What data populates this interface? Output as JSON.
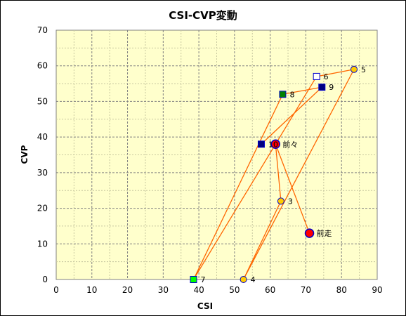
{
  "chart_data": {
    "type": "scatter",
    "title": "CSI-CVP変動",
    "xlabel": "CSI",
    "ylabel": "CVP",
    "xlim": [
      0,
      90
    ],
    "ylim": [
      0,
      70
    ],
    "xticks": [
      0,
      10,
      20,
      30,
      40,
      50,
      60,
      70,
      80,
      90
    ],
    "yticks": [
      0,
      10,
      20,
      30,
      40,
      50,
      60,
      70
    ],
    "grid": true,
    "background": "#ffffcc",
    "line_color": "#ff6600",
    "points": [
      {
        "label": "前走",
        "x": 71,
        "y": 13,
        "marker": "circle-large",
        "fill": "#ff0000",
        "stroke": "#0000cc"
      },
      {
        "label": "前々",
        "x": 61.5,
        "y": 38,
        "marker": "circle-large",
        "fill": "#ff0000",
        "stroke": "#0000cc"
      },
      {
        "label": "3",
        "x": 63,
        "y": 22,
        "marker": "circle",
        "fill": "#ffcc00",
        "stroke": "#0000cc"
      },
      {
        "label": "4",
        "x": 52.5,
        "y": 0,
        "marker": "circle",
        "fill": "#ffcc00",
        "stroke": "#0000cc"
      },
      {
        "label": "5",
        "x": 83.5,
        "y": 59,
        "marker": "circle",
        "fill": "#ffcc00",
        "stroke": "#0000cc"
      },
      {
        "label": "6",
        "x": 73,
        "y": 57,
        "marker": "square",
        "fill": "#ffffff",
        "stroke": "#0000cc"
      },
      {
        "label": "7",
        "x": 38.5,
        "y": 0,
        "marker": "square",
        "fill": "#00ff00",
        "stroke": "#0000cc"
      },
      {
        "label": "8",
        "x": 63.5,
        "y": 52,
        "marker": "square",
        "fill": "#008000",
        "stroke": "#0000cc"
      },
      {
        "label": "9",
        "x": 74.5,
        "y": 54,
        "marker": "square",
        "fill": "#000080",
        "stroke": "#0000cc"
      },
      {
        "label": "10",
        "x": 57.5,
        "y": 38,
        "marker": "square",
        "fill": "#000080",
        "stroke": "#0000cc"
      }
    ]
  }
}
